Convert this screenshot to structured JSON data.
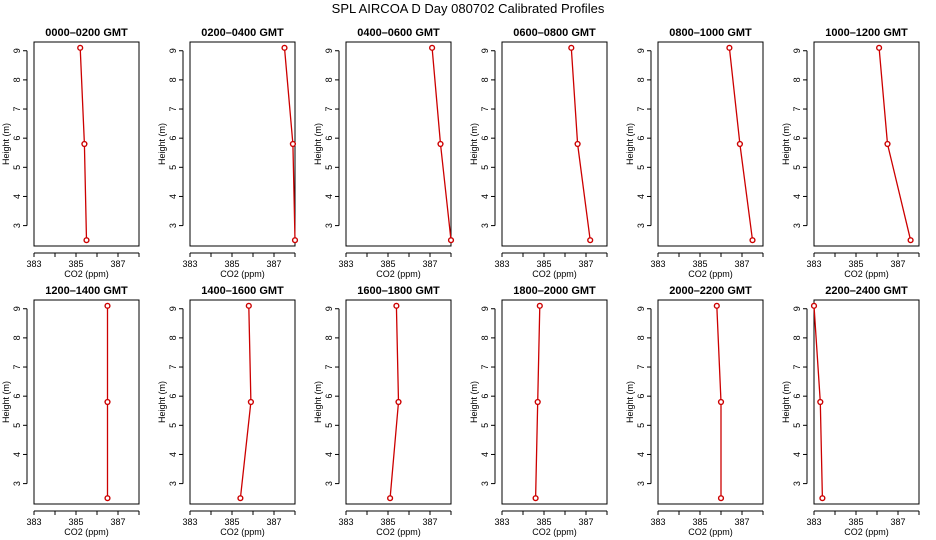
{
  "title": "SPL AIRCOA D  Day 080702  Calibrated Profiles",
  "style": {
    "series_color": "#cc0000",
    "axis_color": "#000000"
  },
  "axes": {
    "xlabel": "CO2 (ppm)",
    "ylabel": "Height (m)",
    "xlim": [
      383,
      388
    ],
    "ylim": [
      2.3,
      9.3
    ],
    "xticks": [
      383,
      384,
      385,
      386,
      387,
      388
    ],
    "xtick_labels": [
      "383",
      "385",
      "387"
    ],
    "yticks": [
      3,
      4,
      5,
      6,
      7,
      8,
      9
    ],
    "grid": false
  },
  "chart_data": [
    {
      "type": "line",
      "title": "0000–0200 GMT",
      "heights": [
        9.1,
        5.8,
        2.5
      ],
      "co2": [
        385.2,
        385.4,
        385.5
      ]
    },
    {
      "type": "line",
      "title": "0200–0400 GMT",
      "heights": [
        9.1,
        5.8,
        2.5
      ],
      "co2": [
        387.5,
        387.9,
        388.0
      ]
    },
    {
      "type": "line",
      "title": "0400–0600 GMT",
      "heights": [
        9.1,
        5.8,
        2.5
      ],
      "co2": [
        387.1,
        387.5,
        388.0
      ]
    },
    {
      "type": "line",
      "title": "0600–0800 GMT",
      "heights": [
        9.1,
        5.8,
        2.5
      ],
      "co2": [
        386.3,
        386.6,
        387.2
      ]
    },
    {
      "type": "line",
      "title": "0800–1000 GMT",
      "heights": [
        9.1,
        5.8,
        2.5
      ],
      "co2": [
        386.4,
        386.9,
        387.5
      ]
    },
    {
      "type": "line",
      "title": "1000–1200 GMT",
      "heights": [
        9.1,
        5.8,
        2.5
      ],
      "co2": [
        386.1,
        386.5,
        387.6
      ]
    },
    {
      "type": "line",
      "title": "1200–1400 GMT",
      "heights": [
        9.1,
        5.8,
        2.5
      ],
      "co2": [
        386.5,
        386.5,
        386.5
      ]
    },
    {
      "type": "line",
      "title": "1400–1600 GMT",
      "heights": [
        9.1,
        5.8,
        2.5
      ],
      "co2": [
        385.8,
        385.9,
        385.4
      ]
    },
    {
      "type": "line",
      "title": "1600–1800 GMT",
      "heights": [
        9.1,
        5.8,
        2.5
      ],
      "co2": [
        385.4,
        385.5,
        385.1
      ]
    },
    {
      "type": "line",
      "title": "1800–2000 GMT",
      "heights": [
        9.1,
        5.8,
        2.5
      ],
      "co2": [
        384.8,
        384.7,
        384.6
      ]
    },
    {
      "type": "line",
      "title": "2000–2200 GMT",
      "heights": [
        9.1,
        5.8,
        2.5
      ],
      "co2": [
        385.8,
        386.0,
        386.0
      ]
    },
    {
      "type": "line",
      "title": "2200–2400 GMT",
      "heights": [
        9.1,
        5.8,
        2.5
      ],
      "co2": [
        383.0,
        383.3,
        383.4
      ]
    }
  ]
}
